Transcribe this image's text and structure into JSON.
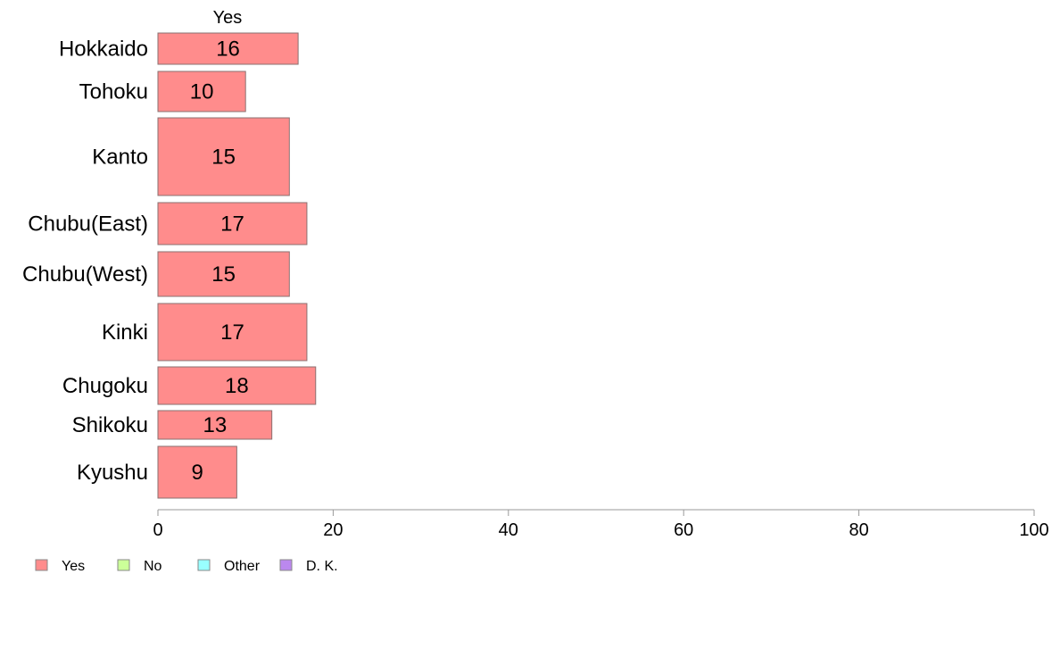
{
  "chart_data": {
    "type": "bar",
    "orientation": "horizontal",
    "column_label": "Yes",
    "categories": [
      "Hokkaido",
      "Tohoku",
      "Kanto",
      "Chubu(East)",
      "Chubu(West)",
      "Kinki",
      "Chugoku",
      "Shikoku",
      "Kyushu"
    ],
    "series": [
      {
        "name": "Yes",
        "values": [
          16,
          10,
          15,
          17,
          15,
          17,
          18,
          13,
          9
        ],
        "color": "#ff8c8c"
      }
    ],
    "xlim": [
      0,
      100
    ],
    "xticks": [
      0,
      20,
      40,
      60,
      80,
      100
    ],
    "legend": {
      "position": "bottom-left",
      "items": [
        {
          "label": "Yes",
          "color": "#ff8c8c"
        },
        {
          "label": "No",
          "color": "#ccff99"
        },
        {
          "label": "Other",
          "color": "#99ffff"
        },
        {
          "label": "D. K.",
          "color": "#bb88ee"
        }
      ]
    },
    "grid": false
  }
}
